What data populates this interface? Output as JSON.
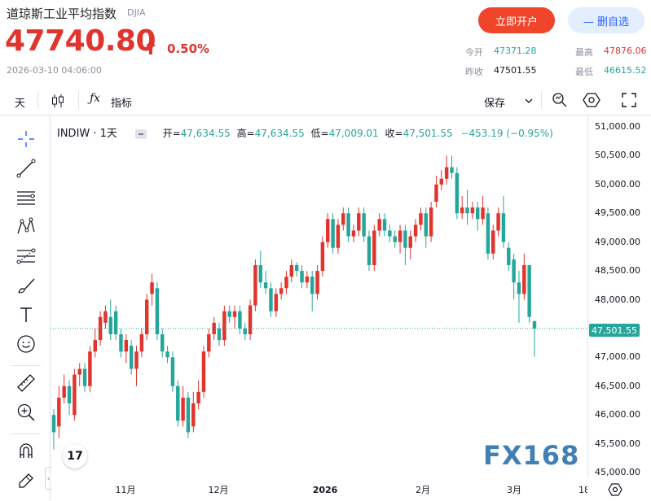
{
  "header": {
    "name": "道琼斯工业平均指数",
    "code": "DJIA",
    "price": "47740.80",
    "change_pct": "0.50%",
    "timestamp": "2026-03-10 04:06:00",
    "open_account_label": "立即开户",
    "remove_watch_label": "— 删自选"
  },
  "quote": {
    "open_label": "今开",
    "open": "47371.28",
    "prev_close_label": "昨收",
    "prev_close": "47501.55",
    "high_label": "最高",
    "high": "47876.06",
    "low_label": "最低",
    "low": "46615.52"
  },
  "toolbar": {
    "interval_label": "天",
    "indicators_label": "指标",
    "save_label": "保存"
  },
  "chart_legend": {
    "symbol": "INDIW · 1天",
    "open_label": "开=",
    "open": "47,634.55",
    "high_label": "高=",
    "high": "47,634.55",
    "low_label": "低=",
    "low": "47,009.01",
    "close_label": "收=",
    "close": "47,501.55",
    "change": "−453.19 (−0.95%)"
  },
  "colors": {
    "up": "#e0342d",
    "down": "#26a69a",
    "accent": "#2962ff",
    "brand_button": "#f0452b"
  },
  "last_price_label": "47,501.55",
  "watermark": "FX168",
  "tools": [
    "crosshair-icon",
    "trend-line-icon",
    "horizontal-lines-icon",
    "pattern-icon",
    "fib-icon",
    "brush-icon",
    "text-icon",
    "emoji-icon",
    "ruler-icon",
    "zoom-icon",
    "magnet-icon",
    "lock-pencil-icon"
  ],
  "chart_data": {
    "type": "candlestick",
    "y_ticks": [
      "51,000.00",
      "50,500.00",
      "50,000.00",
      "49,500.00",
      "49,000.00",
      "48,500.00",
      "48,000.00",
      "47,500.00",
      "47,000.00",
      "46,500.00",
      "46,000.00",
      "45,500.00",
      "45,000.00"
    ],
    "x_ticks": [
      "11月",
      "12月",
      "2026",
      "2月",
      "3月",
      "18"
    ],
    "ylim": [
      45000,
      51000
    ],
    "candles": [
      {
        "o": 46000,
        "c": 45700,
        "h": 46100,
        "l": 45400
      },
      {
        "o": 45800,
        "c": 46300,
        "h": 46500,
        "l": 45600
      },
      {
        "o": 46300,
        "c": 46500,
        "h": 46700,
        "l": 46200
      },
      {
        "o": 46500,
        "c": 46200,
        "h": 46600,
        "l": 46000
      },
      {
        "o": 46000,
        "c": 46700,
        "h": 46800,
        "l": 45900
      },
      {
        "o": 46700,
        "c": 46800,
        "h": 46900,
        "l": 46500
      },
      {
        "o": 46800,
        "c": 46500,
        "h": 46900,
        "l": 46400
      },
      {
        "o": 46500,
        "c": 47100,
        "h": 47200,
        "l": 46400
      },
      {
        "o": 47100,
        "c": 47300,
        "h": 47500,
        "l": 47000
      },
      {
        "o": 47300,
        "c": 47700,
        "h": 47800,
        "l": 47200
      },
      {
        "o": 47600,
        "c": 47800,
        "h": 47900,
        "l": 47500
      },
      {
        "o": 47700,
        "c": 47400,
        "h": 48000,
        "l": 47300
      },
      {
        "o": 47800,
        "c": 47400,
        "h": 47900,
        "l": 47300
      },
      {
        "o": 47400,
        "c": 47100,
        "h": 47500,
        "l": 47000
      },
      {
        "o": 47100,
        "c": 47300,
        "h": 47400,
        "l": 46900
      },
      {
        "o": 47200,
        "c": 46800,
        "h": 47300,
        "l": 46700
      },
      {
        "o": 46800,
        "c": 47100,
        "h": 47200,
        "l": 46500
      },
      {
        "o": 47100,
        "c": 47400,
        "h": 47500,
        "l": 47000
      },
      {
        "o": 47400,
        "c": 48000,
        "h": 48100,
        "l": 47300
      },
      {
        "o": 48100,
        "c": 48300,
        "h": 48450,
        "l": 47900
      },
      {
        "o": 48200,
        "c": 47400,
        "h": 48300,
        "l": 47300
      },
      {
        "o": 47400,
        "c": 47100,
        "h": 47500,
        "l": 47000
      },
      {
        "o": 47100,
        "c": 47000,
        "h": 47200,
        "l": 46900
      },
      {
        "o": 47000,
        "c": 46500,
        "h": 47100,
        "l": 46400
      },
      {
        "o": 46500,
        "c": 45900,
        "h": 46600,
        "l": 45800
      },
      {
        "o": 45900,
        "c": 46300,
        "h": 46500,
        "l": 45800
      },
      {
        "o": 46300,
        "c": 45700,
        "h": 46400,
        "l": 45600
      },
      {
        "o": 45800,
        "c": 46200,
        "h": 46400,
        "l": 45700
      },
      {
        "o": 46200,
        "c": 46400,
        "h": 46600,
        "l": 46100
      },
      {
        "o": 46400,
        "c": 47100,
        "h": 47200,
        "l": 46300
      },
      {
        "o": 47100,
        "c": 47400,
        "h": 47500,
        "l": 47000
      },
      {
        "o": 47400,
        "c": 47600,
        "h": 47700,
        "l": 47300
      },
      {
        "o": 47500,
        "c": 47300,
        "h": 47600,
        "l": 47200
      },
      {
        "o": 47300,
        "c": 47800,
        "h": 47900,
        "l": 47200
      },
      {
        "o": 47800,
        "c": 47700,
        "h": 47900,
        "l": 47600
      },
      {
        "o": 47700,
        "c": 47800,
        "h": 47900,
        "l": 47500
      },
      {
        "o": 47800,
        "c": 47500,
        "h": 47900,
        "l": 47400
      },
      {
        "o": 47500,
        "c": 47400,
        "h": 47600,
        "l": 47300
      },
      {
        "o": 47400,
        "c": 47900,
        "h": 48000,
        "l": 47300
      },
      {
        "o": 47900,
        "c": 48600,
        "h": 48700,
        "l": 47800
      },
      {
        "o": 48600,
        "c": 48300,
        "h": 48850,
        "l": 48200
      },
      {
        "o": 48300,
        "c": 48200,
        "h": 48500,
        "l": 48100
      },
      {
        "o": 48200,
        "c": 47800,
        "h": 48300,
        "l": 47700
      },
      {
        "o": 47800,
        "c": 48100,
        "h": 48200,
        "l": 47700
      },
      {
        "o": 48100,
        "c": 48200,
        "h": 48300,
        "l": 48000
      },
      {
        "o": 48200,
        "c": 48400,
        "h": 48500,
        "l": 48100
      },
      {
        "o": 48400,
        "c": 48600,
        "h": 48700,
        "l": 48300
      },
      {
        "o": 48600,
        "c": 48500,
        "h": 48650,
        "l": 48400
      },
      {
        "o": 48500,
        "c": 48300,
        "h": 48600,
        "l": 48200
      },
      {
        "o": 48300,
        "c": 48400,
        "h": 48500,
        "l": 48200
      },
      {
        "o": 48400,
        "c": 48100,
        "h": 48500,
        "l": 47800
      },
      {
        "o": 48100,
        "c": 48500,
        "h": 48600,
        "l": 48000
      },
      {
        "o": 48500,
        "c": 49000,
        "h": 49100,
        "l": 48400
      },
      {
        "o": 49000,
        "c": 49400,
        "h": 49500,
        "l": 48900
      },
      {
        "o": 49400,
        "c": 48900,
        "h": 49500,
        "l": 48800
      },
      {
        "o": 48900,
        "c": 49300,
        "h": 49400,
        "l": 48800
      },
      {
        "o": 49300,
        "c": 49500,
        "h": 49600,
        "l": 49200
      },
      {
        "o": 49500,
        "c": 49100,
        "h": 49600,
        "l": 49000
      },
      {
        "o": 49100,
        "c": 49200,
        "h": 49300,
        "l": 49000
      },
      {
        "o": 49200,
        "c": 49500,
        "h": 49600,
        "l": 49100
      },
      {
        "o": 49500,
        "c": 49100,
        "h": 49600,
        "l": 49000
      },
      {
        "o": 49100,
        "c": 48600,
        "h": 49200,
        "l": 48500
      },
      {
        "o": 48600,
        "c": 49200,
        "h": 49300,
        "l": 48500
      },
      {
        "o": 49200,
        "c": 49400,
        "h": 49500,
        "l": 49100
      },
      {
        "o": 49400,
        "c": 49200,
        "h": 49500,
        "l": 49100
      },
      {
        "o": 49200,
        "c": 49100,
        "h": 49300,
        "l": 49000
      },
      {
        "o": 49100,
        "c": 49000,
        "h": 49200,
        "l": 48900
      },
      {
        "o": 49000,
        "c": 49200,
        "h": 49300,
        "l": 48800
      },
      {
        "o": 49200,
        "c": 48900,
        "h": 49300,
        "l": 48600
      },
      {
        "o": 48900,
        "c": 49100,
        "h": 49200,
        "l": 48700
      },
      {
        "o": 49100,
        "c": 49300,
        "h": 49400,
        "l": 49000
      },
      {
        "o": 49300,
        "c": 49500,
        "h": 49600,
        "l": 49200
      },
      {
        "o": 49500,
        "c": 49100,
        "h": 49600,
        "l": 48900
      },
      {
        "o": 49100,
        "c": 49600,
        "h": 49700,
        "l": 49000
      },
      {
        "o": 49700,
        "c": 50000,
        "h": 50150,
        "l": 49600
      },
      {
        "o": 50000,
        "c": 50100,
        "h": 50250,
        "l": 49900
      },
      {
        "o": 50100,
        "c": 50300,
        "h": 50500,
        "l": 50000
      },
      {
        "o": 50300,
        "c": 50200,
        "h": 50500,
        "l": 50100
      },
      {
        "o": 50200,
        "c": 49500,
        "h": 50300,
        "l": 49400
      },
      {
        "o": 49500,
        "c": 49600,
        "h": 49800,
        "l": 49400
      },
      {
        "o": 49600,
        "c": 49500,
        "h": 49900,
        "l": 49300
      },
      {
        "o": 49500,
        "c": 49600,
        "h": 49700,
        "l": 49400
      },
      {
        "o": 49600,
        "c": 49400,
        "h": 49700,
        "l": 49200
      },
      {
        "o": 49400,
        "c": 49600,
        "h": 49800,
        "l": 49300
      },
      {
        "o": 49500,
        "c": 48800,
        "h": 49600,
        "l": 48700
      },
      {
        "o": 48800,
        "c": 49200,
        "h": 49300,
        "l": 48700
      },
      {
        "o": 49200,
        "c": 49500,
        "h": 49600,
        "l": 49100
      },
      {
        "o": 49500,
        "c": 49000,
        "h": 49800,
        "l": 48900
      },
      {
        "o": 48900,
        "c": 48600,
        "h": 49000,
        "l": 48500
      },
      {
        "o": 48700,
        "c": 48300,
        "h": 48800,
        "l": 48000
      },
      {
        "o": 48300,
        "c": 48100,
        "h": 48500,
        "l": 47600
      },
      {
        "o": 48100,
        "c": 48600,
        "h": 48800,
        "l": 48000
      },
      {
        "o": 48600,
        "c": 47700,
        "h": 48600,
        "l": 47600
      },
      {
        "o": 47630,
        "c": 47500,
        "h": 47630,
        "l": 47010
      }
    ]
  }
}
